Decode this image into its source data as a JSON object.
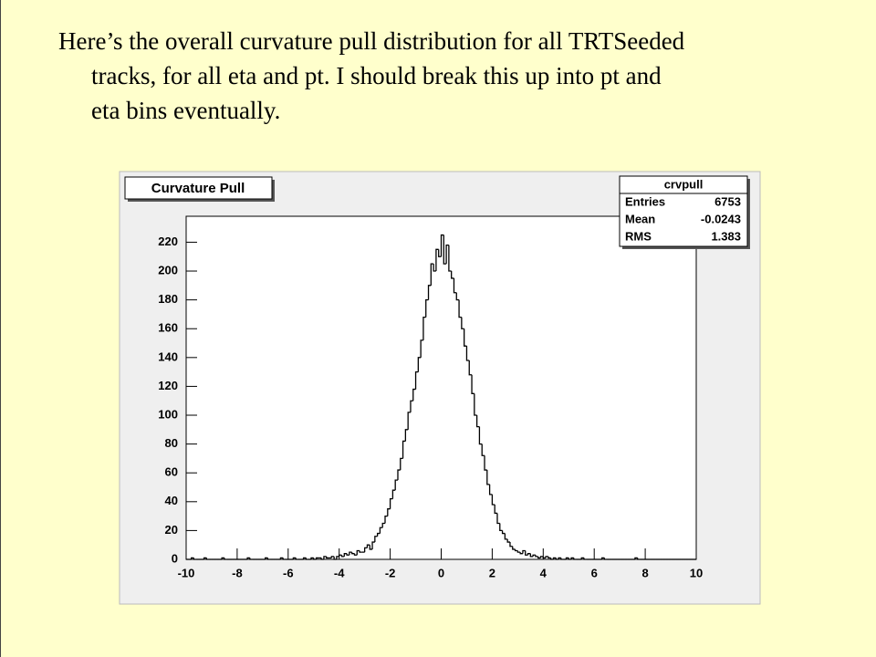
{
  "slide": {
    "text_lines": [
      "Here’s the overall curvature pull distribution for all TRTSeeded",
      "tracks, for all eta and pt. I should break this up into pt and",
      "eta bins eventually."
    ]
  },
  "chart_data": {
    "type": "histogram",
    "title": "Curvature Pull",
    "stats": {
      "name": "crvpull",
      "rows": [
        {
          "label": "Entries",
          "value": 6753
        },
        {
          "label": "Mean",
          "value": -0.0243
        },
        {
          "label": "RMS",
          "value": 1.383
        }
      ]
    },
    "color": "#000000",
    "bins": [
      -10.0,
      -9.9,
      -9.8,
      -9.7,
      -9.6,
      -9.5,
      -9.4,
      -9.3,
      -9.2,
      -9.1,
      -9.0,
      -8.9,
      -8.8,
      -8.7,
      -8.6,
      -8.5,
      -8.4,
      -8.3,
      -8.2,
      -8.1,
      -8.0,
      -7.9,
      -7.8,
      -7.7,
      -7.6,
      -7.5,
      -7.4,
      -7.3,
      -7.2,
      -7.1,
      -7.0,
      -6.9,
      -6.8,
      -6.7,
      -6.6,
      -6.5,
      -6.4,
      -6.3,
      -6.2,
      -6.1,
      -6.0,
      -5.9,
      -5.8,
      -5.7,
      -5.6,
      -5.5,
      -5.4,
      -5.3,
      -5.2,
      -5.1,
      -5.0,
      -4.9,
      -4.8,
      -4.7,
      -4.6,
      -4.5,
      -4.4,
      -4.3,
      -4.2,
      -4.1,
      -4.0,
      -3.9,
      -3.8,
      -3.7,
      -3.6,
      -3.5,
      -3.4,
      -3.3,
      -3.2,
      -3.1,
      -3.0,
      -2.9,
      -2.8,
      -2.7,
      -2.6,
      -2.5,
      -2.4,
      -2.3,
      -2.2,
      -2.1,
      -2.0,
      -1.9,
      -1.8,
      -1.7,
      -1.6,
      -1.5,
      -1.4,
      -1.3,
      -1.2,
      -1.1,
      -1.0,
      -0.9,
      -0.8,
      -0.7,
      -0.6,
      -0.5,
      -0.4,
      -0.3,
      -0.2,
      -0.1,
      0.0,
      0.1,
      0.2,
      0.3,
      0.4,
      0.5,
      0.6,
      0.7,
      0.8,
      0.9,
      1.0,
      1.1,
      1.2,
      1.3,
      1.4,
      1.5,
      1.6,
      1.7,
      1.8,
      1.9,
      2.0,
      2.1,
      2.2,
      2.3,
      2.4,
      2.5,
      2.6,
      2.7,
      2.8,
      2.9,
      3.0,
      3.1,
      3.2,
      3.3,
      3.4,
      3.5,
      3.6,
      3.7,
      3.8,
      3.9,
      4.0,
      4.1,
      4.2,
      4.3,
      4.4,
      4.5,
      4.6,
      4.7,
      4.8,
      4.9,
      5.0,
      5.1,
      5.2,
      5.3,
      5.4,
      5.5,
      5.6,
      5.7,
      5.8,
      5.9,
      6.0,
      6.1,
      6.2,
      6.3,
      6.4,
      6.5,
      6.6,
      6.7,
      6.8,
      6.9,
      7.0,
      7.1,
      7.2,
      7.3,
      7.4,
      7.5,
      7.6,
      7.7,
      7.8,
      7.9,
      8.0,
      8.1,
      8.2,
      8.3,
      8.4,
      8.5,
      8.6,
      8.7,
      8.8,
      8.9,
      9.0,
      9.1,
      9.2,
      9.3,
      9.4,
      9.5,
      9.6,
      9.7,
      9.8,
      9.9,
      10.0
    ],
    "values": [
      0,
      0,
      1,
      0,
      0,
      0,
      0,
      1,
      0,
      0,
      0,
      0,
      0,
      0,
      1,
      0,
      0,
      0,
      0,
      0,
      0,
      0,
      0,
      0,
      1,
      0,
      0,
      0,
      0,
      0,
      0,
      1,
      0,
      0,
      0,
      0,
      0,
      1,
      0,
      0,
      0,
      0,
      1,
      0,
      0,
      0,
      1,
      0,
      0,
      1,
      0,
      1,
      1,
      0,
      2,
      1,
      1,
      2,
      0,
      2,
      3,
      2,
      4,
      3,
      5,
      4,
      3,
      6,
      5,
      5,
      8,
      10,
      7,
      12,
      16,
      18,
      22,
      25,
      30,
      35,
      42,
      48,
      55,
      62,
      70,
      82,
      90,
      102,
      110,
      118,
      130,
      140,
      152,
      168,
      180,
      190,
      205,
      200,
      215,
      210,
      225,
      205,
      218,
      200,
      195,
      185,
      180,
      168,
      160,
      148,
      138,
      128,
      115,
      100,
      92,
      80,
      72,
      62,
      52,
      45,
      38,
      32,
      25,
      20,
      18,
      14,
      12,
      9,
      7,
      6,
      5,
      4,
      6,
      3,
      4,
      2,
      3,
      2,
      1,
      2,
      1,
      2,
      1,
      0,
      1,
      0,
      1,
      0,
      0,
      1,
      0,
      1,
      0,
      0,
      0,
      1,
      0,
      0,
      0,
      0,
      0,
      0,
      0,
      1,
      0,
      0,
      0,
      0,
      0,
      0,
      0,
      0,
      0,
      0,
      0,
      0,
      1,
      0,
      0,
      0,
      0,
      0,
      0,
      0,
      0,
      0,
      0,
      0,
      0,
      0,
      0,
      0,
      0,
      0,
      0,
      0,
      0,
      0,
      0,
      0
    ],
    "xlim": [
      -10,
      10
    ],
    "xticks": [
      -10,
      -8,
      -6,
      -4,
      -2,
      0,
      2,
      4,
      6,
      8,
      10
    ],
    "ylim": [
      0,
      238
    ],
    "yticks": [
      0,
      20,
      40,
      60,
      80,
      100,
      120,
      140,
      160,
      180,
      200,
      220
    ]
  }
}
